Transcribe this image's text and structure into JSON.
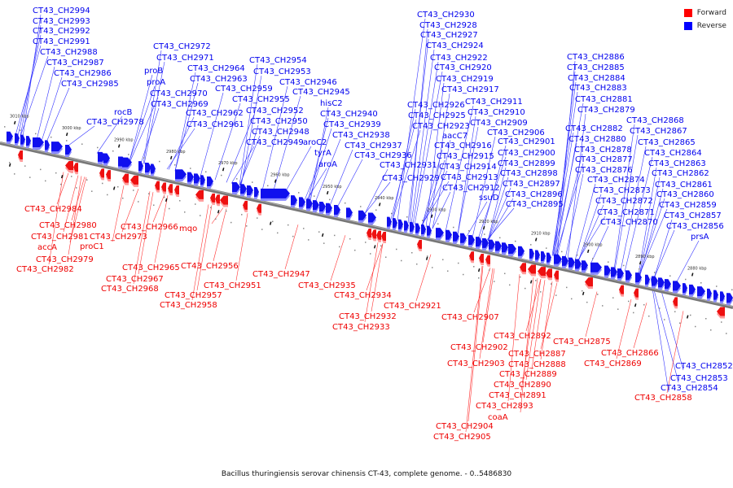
{
  "legend": {
    "items": [
      {
        "label": "Forward",
        "color": "#ff0000"
      },
      {
        "label": "Reverse",
        "color": "#0000ff"
      }
    ]
  },
  "caption": "Bacillus thuringiensis serovar chinensis CT-43, complete genome. - 0..5486830",
  "axis": {
    "ticks": [
      "3010 kbp",
      "3000 kbp",
      "2990 kbp",
      "2980 kbp",
      "2970 kbp",
      "2960 kbp",
      "2950 kbp",
      "2940 kbp",
      "2930 kbp",
      "2920 kbp",
      "2910 kbp",
      "2900 kbp",
      "2890 kbp",
      "2880 kbp"
    ]
  },
  "reverse_labels": [
    "CT43_CH2994",
    "CT43_CH2993",
    "CT43_CH2992",
    "CT43_CH2991",
    "CT43_CH2988",
    "CT43_CH2987",
    "CT43_CH2986",
    "CT43_CH2985",
    "rocB",
    "CT43_CH2978",
    "CT43_CH2972",
    "CT43_CH2971",
    "proB",
    "proA",
    "CT43_CH2970",
    "CT43_CH2969",
    "CT43_CH2964",
    "CT43_CH2963",
    "CT43_CH2962",
    "CT43_CH2961",
    "CT43_CH2954",
    "CT43_CH2953",
    "CT43_CH2959",
    "CT43_CH2955",
    "CT43_CH2952",
    "CT43_CH2950",
    "CT43_CH2948",
    "CT43_CH2949",
    "CT43_CH2946",
    "CT43_CH2945",
    "hisC2",
    "CT43_CH2940",
    "CT43_CH2939",
    "CT43_CH2938",
    "aroC2",
    "tyrA",
    "aroA",
    "CT43_CH2937",
    "CT43_CH2936",
    "CT43_CH2930",
    "CT43_CH2928",
    "CT43_CH2927",
    "CT43_CH2924",
    "CT43_CH2922",
    "CT43_CH2920",
    "CT43_CH2919",
    "CT43_CH2917",
    "CT43_CH2926",
    "CT43_CH2925",
    "CT43_CH2923",
    "aacC7",
    "CT43_CH2916",
    "CT43_CH2915",
    "CT43_CH2914",
    "CT43_CH2913",
    "CT43_CH2912",
    "ssuD",
    "CT43_CH2931",
    "CT43_CH2929",
    "CT43_CH2911",
    "CT43_CH2910",
    "CT43_CH2909",
    "CT43_CH2906",
    "CT43_CH2901",
    "CT43_CH2900",
    "CT43_CH2899",
    "CT43_CH2898",
    "CT43_CH2897",
    "CT43_CH2896",
    "CT43_CH2895",
    "CT43_CH2886",
    "CT43_CH2885",
    "CT43_CH2884",
    "CT43_CH2883",
    "CT43_CH2881",
    "CT43_CH2879",
    "CT43_CH2882",
    "CT43_CH2880",
    "CT43_CH2878",
    "CT43_CH2877",
    "CT43_CH2876",
    "CT43_CH2874",
    "CT43_CH2873",
    "CT43_CH2872",
    "CT43_CH2871",
    "CT43_CH2870",
    "CT43_CH2868",
    "CT43_CH2867",
    "CT43_CH2865",
    "CT43_CH2864",
    "CT43_CH2863",
    "CT43_CH2862",
    "CT43_CH2861",
    "CT43_CH2860",
    "CT43_CH2859",
    "CT43_CH2857",
    "CT43_CH2856",
    "prsA",
    "CT43_CH2852",
    "CT43_CH2853",
    "CT43_CH2854"
  ],
  "forward_labels": [
    "CT43_CH2984",
    "CT43_CH2980",
    "CT43_CH2981",
    "accA",
    "proC1",
    "CT43_CH2979",
    "CT43_CH2982",
    "CT43_CH2973",
    "CT43_CH2966",
    "CT43_CH2965",
    "CT43_CH2967",
    "CT43_CH2968",
    "mqo",
    "CT43_CH2956",
    "CT43_CH2957",
    "CT43_CH2958",
    "CT43_CH2951",
    "CT43_CH2947",
    "CT43_CH2935",
    "CT43_CH2934",
    "CT43_CH2932",
    "CT43_CH2933",
    "CT43_CH2921",
    "CT43_CH2907",
    "CT43_CH2902",
    "CT43_CH2903",
    "CT43_CH2892",
    "CT43_CH2887",
    "CT43_CH2888",
    "CT43_CH2889",
    "CT43_CH2890",
    "CT43_CH2891",
    "CT43_CH2893",
    "coaA",
    "CT43_CH2904",
    "CT43_CH2905",
    "CT43_CH2875",
    "CT43_CH2866",
    "CT43_CH2869",
    "CT43_CH2858"
  ]
}
